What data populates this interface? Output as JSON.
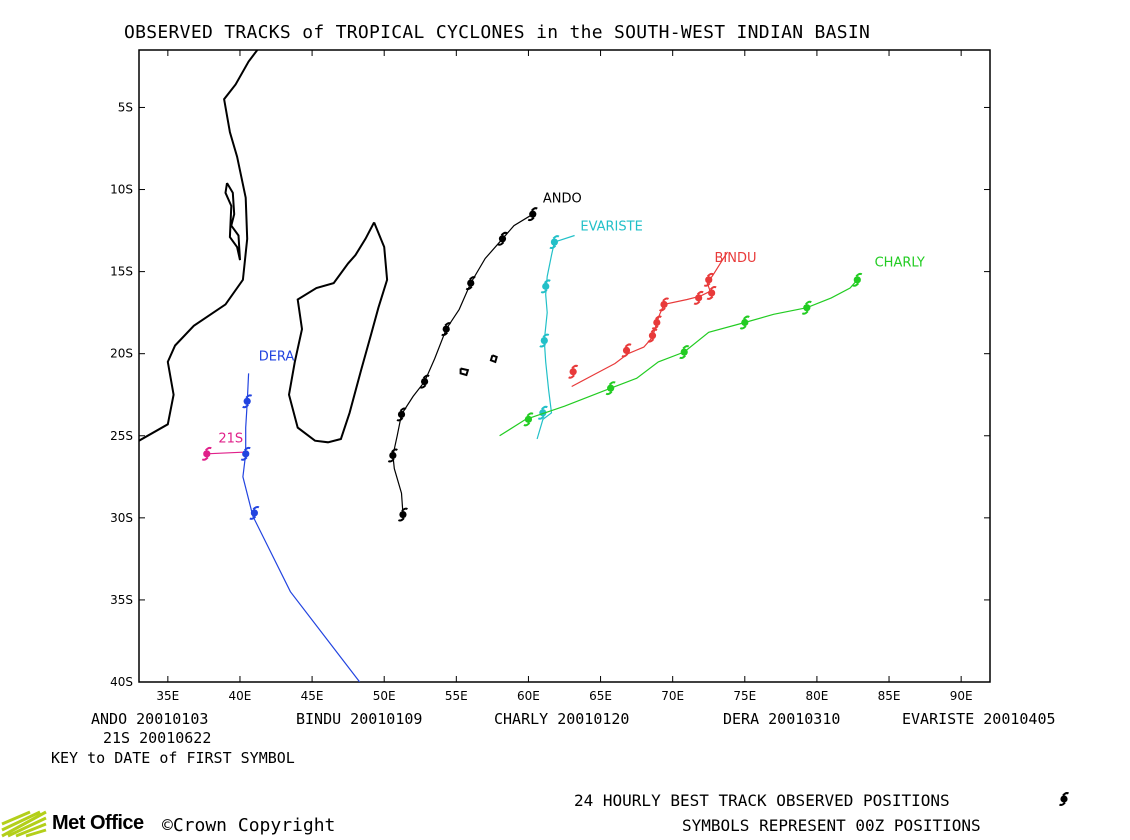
{
  "title": "OBSERVED TRACKS of TROPICAL CYCLONES in the SOUTH-WEST INDIAN BASIN",
  "colors": {
    "ANDO": "#000000",
    "BINDU": "#e83a3a",
    "CHARLY": "#22cc22",
    "DERA": "#2244e0",
    "EVARISTE": "#22c0c8",
    "21S": "#e0208a",
    "coast": "#000000"
  },
  "chart_data": {
    "type": "map",
    "x_axis": {
      "range": [
        33,
        92
      ],
      "ticks": [
        35,
        40,
        45,
        50,
        55,
        60,
        65,
        70,
        75,
        80,
        85,
        90
      ],
      "tick_labels": [
        "35E",
        "40E",
        "45E",
        "50E",
        "55E",
        "60E",
        "65E",
        "70E",
        "75E",
        "80E",
        "85E",
        "90E"
      ]
    },
    "y_axis": {
      "range": [
        -40,
        -1.5
      ],
      "ticks": [
        -5,
        -10,
        -15,
        -20,
        -25,
        -30,
        -35,
        -40
      ],
      "tick_labels": [
        "5S",
        "10S",
        "15S",
        "20S",
        "25S",
        "30S",
        "35S",
        "40S"
      ]
    },
    "tracks": [
      {
        "name": "ANDO",
        "label": "ANDO",
        "label_at": [
          61,
          -10.8
        ],
        "line": [
          [
            51.3,
            -29.8
          ],
          [
            51.2,
            -28.5
          ],
          [
            50.7,
            -27
          ],
          [
            50.6,
            -26.2
          ],
          [
            50.9,
            -25
          ],
          [
            51.2,
            -23.7
          ],
          [
            52,
            -22.6
          ],
          [
            52.8,
            -21.7
          ],
          [
            53.5,
            -20.3
          ],
          [
            54.3,
            -18.5
          ],
          [
            55.2,
            -17.3
          ],
          [
            56,
            -15.7
          ],
          [
            57,
            -14.2
          ],
          [
            58.2,
            -13
          ],
          [
            59,
            -12.2
          ],
          [
            60.3,
            -11.5
          ]
        ],
        "symbols": [
          [
            51.3,
            -29.8
          ],
          [
            50.6,
            -26.2
          ],
          [
            51.2,
            -23.7
          ],
          [
            52.8,
            -21.7
          ],
          [
            54.3,
            -18.5
          ],
          [
            56,
            -15.7
          ],
          [
            58.2,
            -13
          ],
          [
            60.3,
            -11.5
          ]
        ]
      },
      {
        "name": "EVARISTE",
        "label": "EVARISTE",
        "label_at": [
          63.6,
          -12.5
        ],
        "line": [
          [
            60.6,
            -25.2
          ],
          [
            61,
            -24
          ],
          [
            61.6,
            -23.6
          ],
          [
            61.4,
            -22.2
          ],
          [
            61.2,
            -20.5
          ],
          [
            61.1,
            -19.2
          ],
          [
            61.3,
            -17.5
          ],
          [
            61.2,
            -16.4
          ],
          [
            61.3,
            -15.3
          ],
          [
            61.6,
            -14
          ],
          [
            61.8,
            -13.2
          ],
          [
            63.2,
            -12.8
          ]
        ],
        "symbols": [
          [
            61,
            -23.6
          ],
          [
            61.1,
            -19.2
          ],
          [
            61.2,
            -15.9
          ],
          [
            61.8,
            -13.2
          ]
        ]
      },
      {
        "name": "BINDU",
        "label": "BINDU",
        "label_at": [
          72.9,
          -14.4
        ],
        "line": [
          [
            63,
            -22
          ],
          [
            64.5,
            -21.3
          ],
          [
            66,
            -20.6
          ],
          [
            66.9,
            -20
          ],
          [
            68,
            -19.6
          ],
          [
            68.6,
            -19
          ],
          [
            68.9,
            -18.1
          ],
          [
            69.1,
            -17.6
          ],
          [
            69.4,
            -17
          ],
          [
            71,
            -16.7
          ],
          [
            71.9,
            -16.5
          ],
          [
            72.6,
            -16.2
          ],
          [
            72.4,
            -15.7
          ],
          [
            72.8,
            -15.2
          ],
          [
            73.8,
            -13.8
          ]
        ],
        "symbols": [
          [
            63.1,
            -21.1
          ],
          [
            66.8,
            -19.8
          ],
          [
            68.6,
            -18.9
          ],
          [
            68.9,
            -18.1
          ],
          [
            69.4,
            -17
          ],
          [
            71.8,
            -16.6
          ],
          [
            72.7,
            -16.3
          ],
          [
            72.5,
            -15.5
          ]
        ]
      },
      {
        "name": "CHARLY",
        "label": "CHARLY",
        "label_at": [
          84,
          -14.7
        ],
        "line": [
          [
            58,
            -25
          ],
          [
            59.8,
            -24
          ],
          [
            62.5,
            -23.2
          ],
          [
            65.7,
            -22.1
          ],
          [
            67.5,
            -21.5
          ],
          [
            69,
            -20.5
          ],
          [
            70.8,
            -19.9
          ],
          [
            72.5,
            -18.7
          ],
          [
            75,
            -18.1
          ],
          [
            77,
            -17.6
          ],
          [
            79.3,
            -17.2
          ],
          [
            81,
            -16.6
          ],
          [
            82.3,
            -16
          ],
          [
            82.8,
            -15.5
          ]
        ],
        "symbols": [
          [
            60,
            -24
          ],
          [
            65.7,
            -22.1
          ],
          [
            70.8,
            -19.9
          ],
          [
            75,
            -18.1
          ],
          [
            79.3,
            -17.2
          ],
          [
            82.8,
            -15.5
          ]
        ]
      },
      {
        "name": "DERA",
        "label": "DERA",
        "label_at": [
          41.3,
          -20.4
        ],
        "line": [
          [
            48.3,
            -40
          ],
          [
            43.5,
            -34.5
          ],
          [
            40.9,
            -29.9
          ],
          [
            40.2,
            -27.5
          ],
          [
            40.4,
            -26.1
          ],
          [
            40.4,
            -24.5
          ],
          [
            40.5,
            -23
          ],
          [
            40.6,
            -21.2
          ]
        ],
        "symbols": [
          [
            41,
            -29.7
          ],
          [
            40.4,
            -26.1
          ],
          [
            40.5,
            -22.9
          ]
        ]
      },
      {
        "name": "21S",
        "label": "21S",
        "label_at": [
          38.5,
          -25.4
        ],
        "line": [
          [
            37.7,
            -26.1
          ],
          [
            40.2,
            -26
          ]
        ],
        "symbols": [
          [
            37.7,
            -26.1
          ]
        ]
      }
    ]
  },
  "key": {
    "row1": [
      "ANDO 20010103",
      "BINDU 20010109",
      "CHARLY 20010120",
      "DERA 20010310",
      "EVARISTE 20010405"
    ],
    "row2": "21S 20010622",
    "row3": "KEY to DATE of FIRST SYMBOL"
  },
  "legend": {
    "line1": "24 HOURLY BEST TRACK OBSERVED POSITIONS",
    "line2": "SYMBOLS REPRESENT 00Z POSITIONS",
    "symbol_icon": "cyclone-symbol-icon"
  },
  "footer": {
    "logo": "Met Office",
    "copyright": "©Crown Copyright"
  }
}
